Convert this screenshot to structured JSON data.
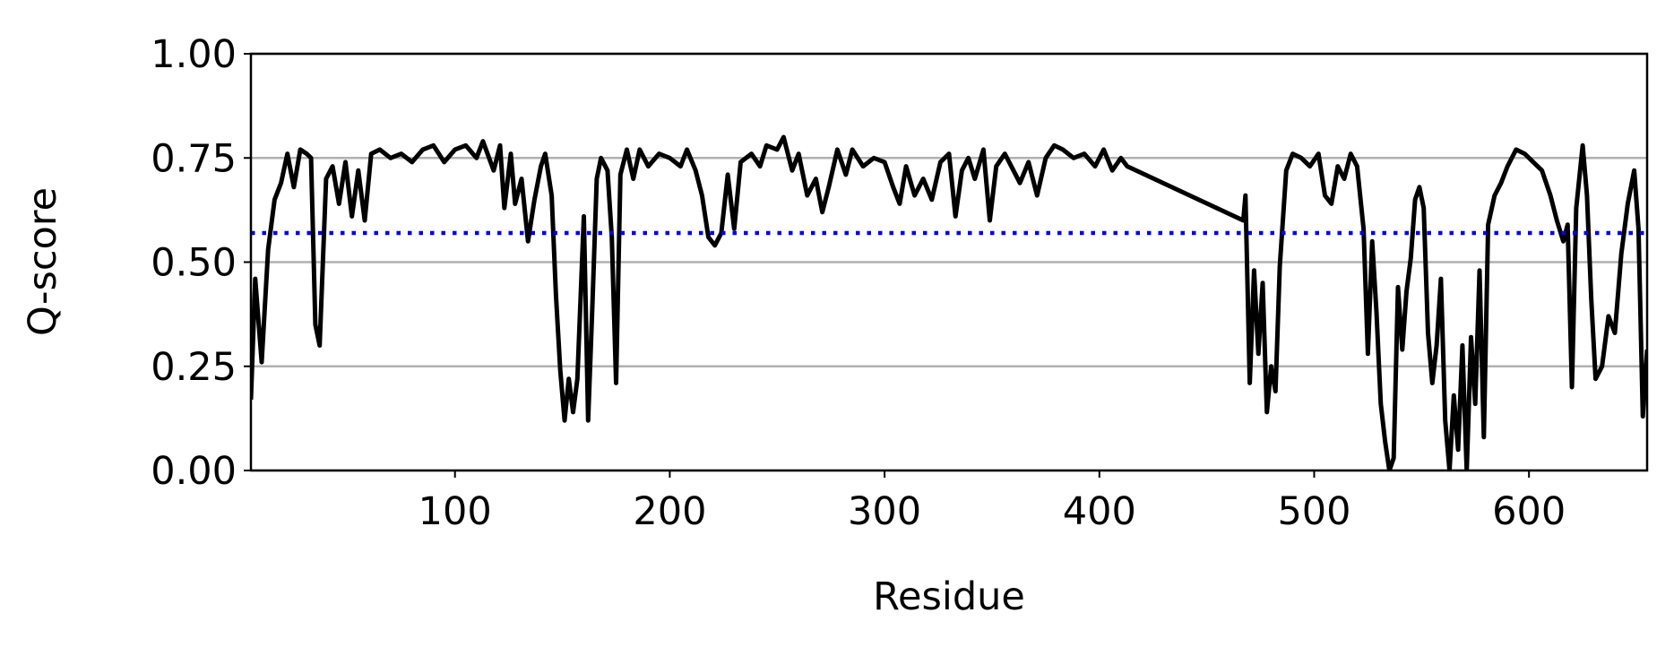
{
  "chart_data": {
    "type": "line",
    "xlabel": "Residue",
    "ylabel": "Q-score",
    "xlim": [
      5,
      655
    ],
    "ylim": [
      0,
      1
    ],
    "xticks": [
      100,
      200,
      300,
      400,
      500,
      600
    ],
    "yticks": [
      {
        "value": 0,
        "label": "0.00"
      },
      {
        "value": 0.25,
        "label": "0.25"
      },
      {
        "value": 0.5,
        "label": "0.50"
      },
      {
        "value": 0.75,
        "label": "0.75"
      },
      {
        "value": 1,
        "label": "1.00"
      }
    ],
    "grid": true,
    "threshold": 0.57,
    "threshold_color": "#0000ee",
    "x": [
      5,
      7,
      10,
      13,
      16,
      19,
      22,
      25,
      28,
      31,
      33,
      35,
      37,
      40,
      43,
      46,
      49,
      52,
      55,
      58,
      61,
      65,
      70,
      75,
      80,
      85,
      90,
      95,
      100,
      105,
      110,
      113,
      118,
      121,
      123,
      126,
      128,
      131,
      134,
      137,
      140,
      142,
      145,
      147,
      149,
      151,
      153,
      155,
      157,
      160,
      162,
      164,
      166,
      168,
      171,
      173,
      175,
      177,
      180,
      183,
      186,
      190,
      195,
      200,
      205,
      208,
      212,
      215,
      218,
      221,
      224,
      227,
      230,
      233,
      238,
      242,
      245,
      250,
      253,
      257,
      260,
      264,
      268,
      271,
      274,
      278,
      282,
      285,
      290,
      295,
      300,
      304,
      307,
      310,
      314,
      318,
      322,
      326,
      330,
      333,
      336,
      339,
      342,
      346,
      349,
      352,
      356,
      360,
      363,
      367,
      371,
      375,
      379,
      383,
      388,
      393,
      398,
      402,
      406,
      410,
      413,
      467,
      468,
      470,
      472,
      474,
      476,
      478,
      480,
      482,
      484,
      487,
      490,
      494,
      498,
      502,
      505,
      508,
      511,
      514,
      517,
      520,
      523,
      525,
      527,
      529,
      531,
      533,
      535,
      537,
      539,
      541,
      543,
      545,
      547,
      549,
      551,
      553,
      555,
      557,
      559,
      561,
      563,
      565,
      567,
      569,
      571,
      573,
      575,
      577,
      579,
      581,
      584,
      587,
      590,
      594,
      598,
      602,
      606,
      610,
      613,
      616,
      618,
      620,
      622,
      625,
      627,
      629,
      631,
      634,
      637,
      640,
      643,
      646,
      649,
      651,
      653,
      655
    ],
    "series": [
      {
        "color": "#000000",
        "values": [
          0.17,
          0.46,
          0.26,
          0.53,
          0.65,
          0.69,
          0.76,
          0.68,
          0.77,
          0.76,
          0.75,
          0.35,
          0.3,
          0.7,
          0.73,
          0.64,
          0.74,
          0.61,
          0.72,
          0.6,
          0.76,
          0.77,
          0.75,
          0.76,
          0.74,
          0.77,
          0.78,
          0.74,
          0.77,
          0.78,
          0.75,
          0.79,
          0.72,
          0.78,
          0.63,
          0.76,
          0.64,
          0.7,
          0.55,
          0.65,
          0.73,
          0.76,
          0.66,
          0.42,
          0.24,
          0.12,
          0.22,
          0.14,
          0.22,
          0.61,
          0.12,
          0.4,
          0.7,
          0.75,
          0.72,
          0.56,
          0.21,
          0.71,
          0.77,
          0.7,
          0.77,
          0.73,
          0.76,
          0.75,
          0.73,
          0.77,
          0.72,
          0.66,
          0.56,
          0.54,
          0.57,
          0.71,
          0.58,
          0.74,
          0.76,
          0.73,
          0.78,
          0.77,
          0.8,
          0.72,
          0.76,
          0.66,
          0.7,
          0.62,
          0.68,
          0.77,
          0.71,
          0.77,
          0.73,
          0.75,
          0.74,
          0.68,
          0.64,
          0.73,
          0.66,
          0.7,
          0.65,
          0.74,
          0.76,
          0.61,
          0.72,
          0.75,
          0.7,
          0.77,
          0.6,
          0.73,
          0.76,
          0.72,
          0.69,
          0.74,
          0.66,
          0.75,
          0.78,
          0.77,
          0.75,
          0.76,
          0.73,
          0.77,
          0.72,
          0.75,
          0.73,
          0.6,
          0.66,
          0.21,
          0.48,
          0.28,
          0.45,
          0.14,
          0.25,
          0.19,
          0.49,
          0.72,
          0.76,
          0.75,
          0.73,
          0.76,
          0.66,
          0.64,
          0.73,
          0.7,
          0.76,
          0.73,
          0.58,
          0.28,
          0.55,
          0.38,
          0.16,
          0.07,
          0.0,
          0.03,
          0.44,
          0.29,
          0.43,
          0.51,
          0.65,
          0.68,
          0.63,
          0.33,
          0.21,
          0.3,
          0.46,
          0.12,
          0.0,
          0.18,
          0.05,
          0.3,
          0.0,
          0.32,
          0.16,
          0.48,
          0.08,
          0.59,
          0.66,
          0.69,
          0.73,
          0.77,
          0.76,
          0.74,
          0.72,
          0.66,
          0.6,
          0.55,
          0.59,
          0.2,
          0.63,
          0.78,
          0.66,
          0.41,
          0.22,
          0.25,
          0.37,
          0.33,
          0.52,
          0.64,
          0.72,
          0.58,
          0.13,
          0.29
        ]
      }
    ]
  }
}
